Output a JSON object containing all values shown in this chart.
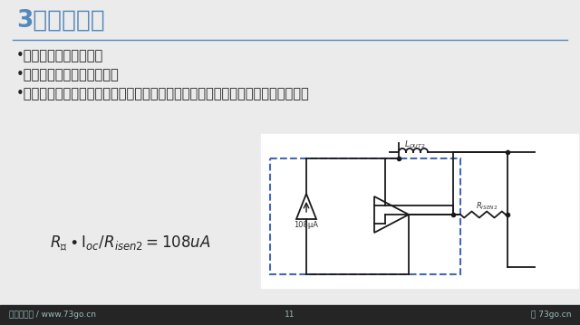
{
  "title": "3、电流采样",
  "bullet1": "•方法一、串入精密电阻",
  "bullet2": "•优点：测试准确，易于调试",
  "bullet3": "•缺点：增加能够通过大电流的高精密电阻，增加成本，增加器件，降低电源效率。",
  "footer_left": "轻松行科技 / www.73go.cn",
  "footer_center": "11",
  "footer_right": "73go.cn",
  "bg_color": "#ebebeb",
  "bg_color2": "#e8e8e8",
  "title_color": "#5588bb",
  "text_color": "#222222",
  "footer_bg": "#252525",
  "footer_text": "#99bbbb",
  "divider_color": "#5588bb",
  "dashed_box_color": "#4466bb",
  "circuit_line_color": "#1a1a1a",
  "white": "#ffffff"
}
